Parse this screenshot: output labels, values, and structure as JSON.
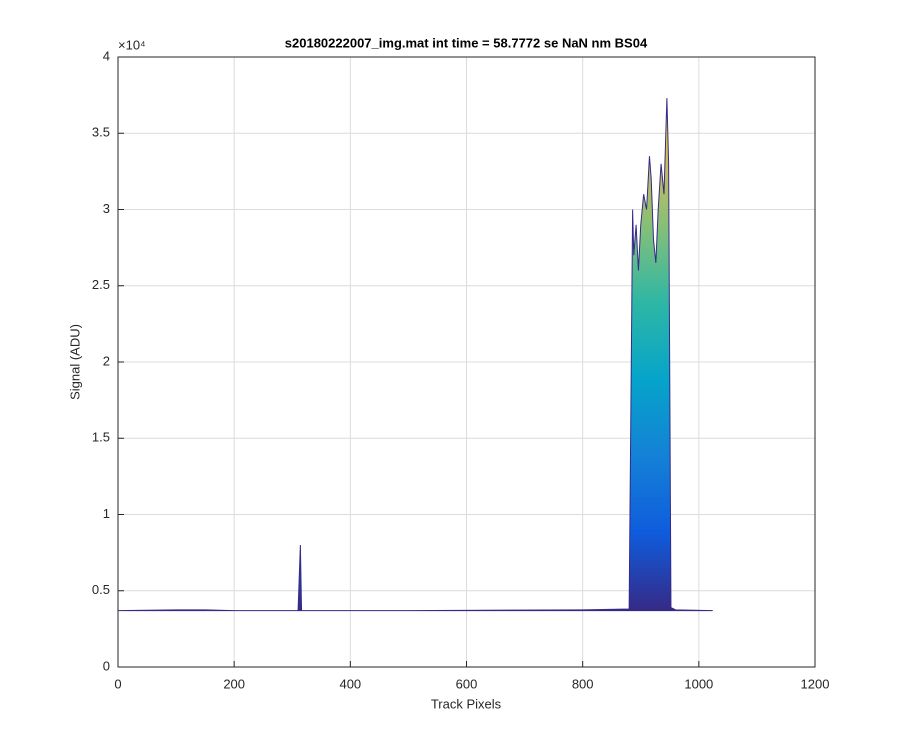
{
  "chart_data": {
    "type": "area",
    "title": "s20180222007_img.mat int time = 58.7772 se  NaN nm BS04",
    "x_label": "Track Pixels",
    "y_label": "Signal (ADU)",
    "y_exponent_label": "×10⁴",
    "series": [
      {
        "x": [
          0,
          100,
          150,
          200,
          310,
          314,
          316,
          320,
          500,
          800,
          880,
          886,
          888,
          892,
          896,
          900,
          905,
          910,
          915,
          918,
          922,
          926,
          930,
          935,
          940,
          945,
          948,
          952,
          960,
          1024
        ],
        "values": [
          3700,
          3750,
          3750,
          3700,
          3700,
          8000,
          3700,
          3700,
          3700,
          3750,
          3800,
          30000,
          27000,
          29000,
          26000,
          29000,
          31000,
          30000,
          33500,
          32000,
          28000,
          26500,
          30000,
          33000,
          31000,
          37300,
          33000,
          3900,
          3750,
          3700
        ]
      }
    ],
    "xlim": [
      0,
      1200
    ],
    "xticks": [
      0,
      200,
      400,
      600,
      800,
      1000,
      1200
    ],
    "ylim": [
      0,
      40000
    ],
    "yticks": [
      0,
      {
        "value": 5000,
        "label": "0.5"
      },
      {
        "value": 10000,
        "label": "1"
      },
      {
        "value": 15000,
        "label": "1.5"
      },
      {
        "value": 20000,
        "label": "2"
      },
      {
        "value": 25000,
        "label": "2.5"
      },
      {
        "value": 30000,
        "label": "3"
      },
      {
        "value": 35000,
        "label": "3.5"
      },
      {
        "value": 40000,
        "label": "4"
      }
    ],
    "grid": true
  }
}
